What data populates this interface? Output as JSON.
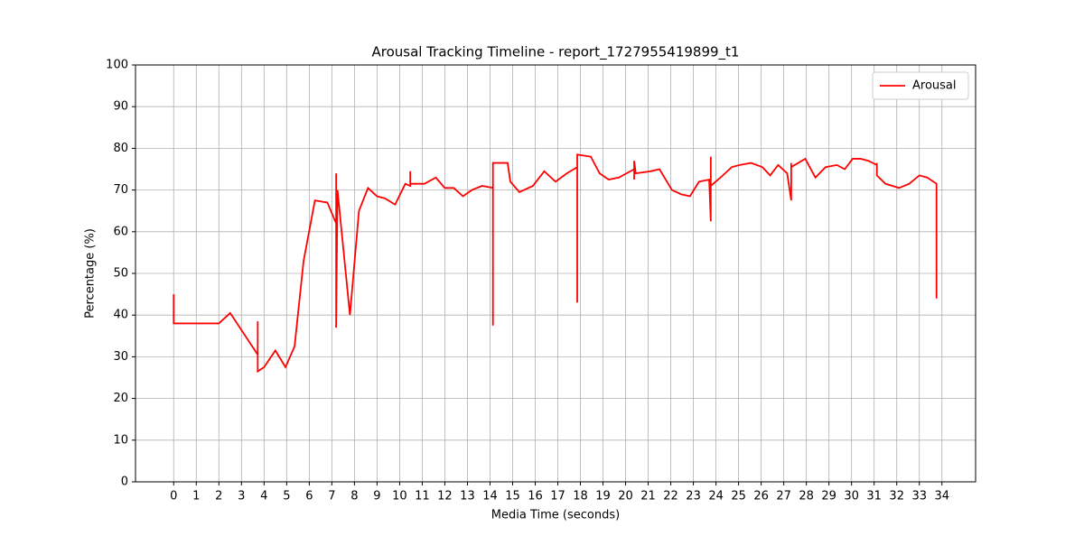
{
  "chart_data": {
    "type": "line",
    "title": "Arousal Tracking Timeline - report_1727955419899_t1",
    "x_label": "Media Time (seconds)",
    "y_label": "Percentage (%)",
    "series": [
      {
        "name": "Arousal",
        "color": "#ff0000",
        "x": [
          0,
          0,
          2,
          2.5,
          3.72,
          3.72,
          3.72,
          4.0,
          4.5,
          4.95,
          5.35,
          5.75,
          6.25,
          6.8,
          7.19,
          7.19,
          7.19,
          7.25,
          7.8,
          8.2,
          8.6,
          9.0,
          9.35,
          9.8,
          10.25,
          10.47,
          10.47,
          10.47,
          11.1,
          11.6,
          12.0,
          12.4,
          12.8,
          13.2,
          13.65,
          14.13,
          14.13,
          14.13,
          14.78,
          14.9,
          15.3,
          15.9,
          16.4,
          16.9,
          17.4,
          17.86,
          17.86,
          17.86,
          18.46,
          18.85,
          19.25,
          19.7,
          20.38,
          20.38,
          20.38,
          20.45,
          21.1,
          21.5,
          22.05,
          22.45,
          22.85,
          23.25,
          23.7,
          23.77,
          23.77,
          23.77,
          24.2,
          24.7,
          25.05,
          25.55,
          26.05,
          26.4,
          26.75,
          27.15,
          27.33,
          27.33,
          27.33,
          27.95,
          28.4,
          28.85,
          29.35,
          29.7,
          30.05,
          30.4,
          30.75,
          31.12,
          31.12,
          31.12,
          31.12,
          31.5,
          32.1,
          32.55,
          33.0,
          33.35,
          33.76,
          33.76,
          33.76
        ],
        "values": [
          45,
          38,
          38,
          40.5,
          30.5,
          38.5,
          26.5,
          27.5,
          31.5,
          27.5,
          32.5,
          53,
          67.5,
          67,
          62,
          74,
          37,
          70,
          40,
          65,
          70.5,
          68.5,
          68,
          66.5,
          71.5,
          71,
          74.5,
          71.5,
          71.5,
          73,
          70.5,
          70.5,
          68.5,
          70,
          71,
          70.5,
          37.5,
          76.5,
          76.5,
          72,
          69.5,
          71,
          74.5,
          72,
          74,
          75.5,
          43,
          78.5,
          78,
          74,
          72.5,
          73,
          75,
          72.5,
          77,
          74,
          74.5,
          75,
          70,
          69,
          68.5,
          72,
          72.5,
          62.5,
          78,
          71,
          73,
          75.5,
          76,
          76.5,
          75.5,
          73.5,
          76,
          74,
          67.5,
          76.5,
          75.5,
          77.5,
          73,
          75.5,
          76,
          75,
          77.5,
          77.5,
          77,
          76,
          74,
          76.5,
          73.5,
          71.5,
          70.5,
          71.5,
          73.5,
          73,
          71.5,
          44,
          65
        ]
      }
    ],
    "xlim": [
      -1.69,
      35.49
    ],
    "ylim": [
      0,
      100
    ],
    "xticks": [
      0,
      1,
      2,
      3,
      4,
      5,
      6,
      7,
      8,
      9,
      10,
      11,
      12,
      13,
      14,
      15,
      16,
      17,
      18,
      19,
      20,
      21,
      22,
      23,
      24,
      25,
      26,
      27,
      28,
      29,
      30,
      31,
      32,
      33,
      34
    ],
    "yticks": [
      0,
      10,
      20,
      30,
      40,
      50,
      60,
      70,
      80,
      90,
      100
    ],
    "grid": true,
    "legend": "upper right"
  }
}
